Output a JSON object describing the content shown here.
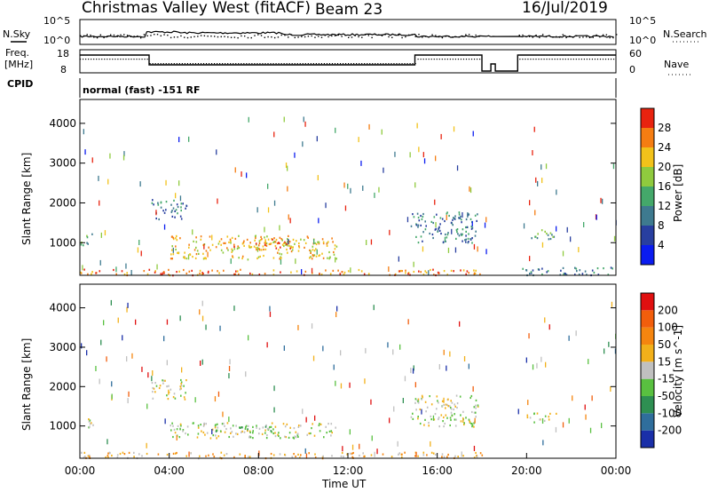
{
  "header": {
    "title": "Christmas Valley West (fitACF)",
    "beam": "Beam 23",
    "date": "16/Jul/2019"
  },
  "strips": {
    "nsky_label": "N.Sky",
    "nsearch_label": "N.Search",
    "noise_ticks": [
      "10^5",
      "10^0"
    ],
    "freq_label_1": "Freq.",
    "freq_label_2": "[MHz]",
    "freq_ticks": [
      "18",
      "8"
    ],
    "nave_label": "Nave",
    "nave_ticks": [
      "60",
      "0"
    ],
    "cpid_label": "CPID",
    "cpid_text": "normal (fast) -151 RF"
  },
  "time_axis": {
    "title": "Time UT",
    "ticks": [
      "00:00",
      "04:00",
      "08:00",
      "12:00",
      "16:00",
      "20:00",
      "00:00"
    ]
  },
  "chart_data": [
    {
      "type": "heatmap",
      "name": "power",
      "ylabel": "Slant Range [km]",
      "xlim": [
        0,
        24
      ],
      "ylim": [
        180,
        4600
      ],
      "yticks": [
        1000,
        2000,
        3000,
        4000
      ],
      "colorbar": {
        "label": "Power [dB]",
        "ticks": [
          "4",
          "8",
          "12",
          "16",
          "20",
          "24",
          "28"
        ],
        "colors": [
          "#0a1cf0",
          "#283fa0",
          "#3e7a8f",
          "#44a86a",
          "#8fca3e",
          "#f2c21a",
          "#f57d12",
          "#e8230f"
        ]
      },
      "regions": [
        {
          "t": [
            0.0,
            0.6
          ],
          "r": [
            950,
            1250
          ],
          "level": 3
        },
        {
          "t": [
            3.2,
            4.8
          ],
          "r": [
            1600,
            2100
          ],
          "level": 2
        },
        {
          "t": [
            4.0,
            11.5
          ],
          "r": [
            600,
            1200
          ],
          "level": 5
        },
        {
          "t": [
            6.5,
            9.5
          ],
          "r": [
            850,
            1150
          ],
          "level": 6
        },
        {
          "t": [
            0.0,
            18.0
          ],
          "r": [
            200,
            350
          ],
          "level": 6
        },
        {
          "t": [
            14.8,
            17.8
          ],
          "r": [
            1000,
            1800
          ],
          "level": 2
        },
        {
          "t": [
            20.0,
            21.3
          ],
          "r": [
            1100,
            1350
          ],
          "level": 3
        },
        {
          "t": [
            19.6,
            24.0
          ],
          "r": [
            200,
            400
          ],
          "level": 2
        }
      ]
    },
    {
      "type": "heatmap",
      "name": "velocity",
      "ylabel": "Slant Range [km]",
      "xlim": [
        0,
        24
      ],
      "ylim": [
        180,
        4600
      ],
      "yticks": [
        1000,
        2000,
        3000,
        4000
      ],
      "colorbar": {
        "label": "Velocity [m s^-1]",
        "ticks": [
          "200",
          "100",
          "50",
          "15",
          "-15",
          "-50",
          "-100",
          "-200"
        ],
        "colors": [
          "#1a2fa8",
          "#2f6e9c",
          "#2e8f52",
          "#59c040",
          "#c0c0c0",
          "#f2b01a",
          "#f5850f",
          "#f25e0c",
          "#e01010"
        ]
      },
      "regions": [
        {
          "t": [
            0.0,
            0.6
          ],
          "r": [
            950,
            1250
          ],
          "level": 4
        },
        {
          "t": [
            3.2,
            4.8
          ],
          "r": [
            1700,
            2200
          ],
          "level": 4
        },
        {
          "t": [
            4.0,
            11.5
          ],
          "r": [
            700,
            1100
          ],
          "level": 4
        },
        {
          "t": [
            6.0,
            9.0
          ],
          "r": [
            850,
            1050
          ],
          "level": 3
        },
        {
          "t": [
            0.0,
            18.0
          ],
          "r": [
            200,
            350
          ],
          "level": 5
        },
        {
          "t": [
            14.8,
            17.8
          ],
          "r": [
            1000,
            1800
          ],
          "level": 4
        },
        {
          "t": [
            20.0,
            21.3
          ],
          "r": [
            1100,
            1350
          ],
          "level": 4
        }
      ]
    }
  ]
}
